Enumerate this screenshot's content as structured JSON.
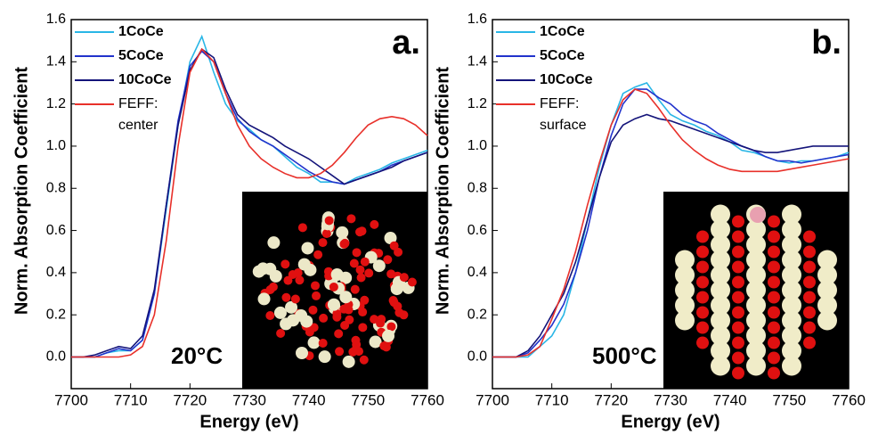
{
  "chart_data": [
    {
      "type": "line",
      "annotation": "a.",
      "inset_label": "20°C",
      "xlabel": "Energy (eV)",
      "ylabel": "Norm. Absorption Coefficient",
      "x": [
        7700,
        7702,
        7704,
        7706,
        7708,
        7710,
        7712,
        7714,
        7716,
        7718,
        7720,
        7722,
        7724,
        7726,
        7728,
        7730,
        7732,
        7734,
        7736,
        7738,
        7740,
        7742,
        7744,
        7746,
        7748,
        7750,
        7752,
        7754,
        7756,
        7758,
        7760
      ],
      "series": [
        {
          "name": "1CoCe",
          "color": "#29b6e6",
          "values": [
            0,
            0,
            0,
            0.02,
            0.03,
            0.03,
            0.08,
            0.3,
            0.7,
            1.1,
            1.4,
            1.52,
            1.35,
            1.2,
            1.12,
            1.08,
            1.03,
            1.0,
            0.95,
            0.9,
            0.87,
            0.83,
            0.83,
            0.82,
            0.85,
            0.87,
            0.89,
            0.92,
            0.94,
            0.96,
            0.98
          ]
        },
        {
          "name": "5CoCe",
          "color": "#2233cc",
          "values": [
            0,
            0,
            0,
            0.02,
            0.04,
            0.03,
            0.08,
            0.3,
            0.72,
            1.12,
            1.38,
            1.45,
            1.4,
            1.25,
            1.13,
            1.07,
            1.03,
            1.0,
            0.96,
            0.92,
            0.88,
            0.85,
            0.83,
            0.82,
            0.84,
            0.86,
            0.88,
            0.91,
            0.93,
            0.95,
            0.97
          ]
        },
        {
          "name": "10CoCe",
          "color": "#14147a",
          "values": [
            0,
            0,
            0.01,
            0.03,
            0.05,
            0.04,
            0.1,
            0.32,
            0.72,
            1.1,
            1.36,
            1.46,
            1.42,
            1.27,
            1.15,
            1.1,
            1.07,
            1.04,
            1.0,
            0.97,
            0.94,
            0.9,
            0.86,
            0.82,
            0.84,
            0.86,
            0.88,
            0.9,
            0.93,
            0.95,
            0.97
          ]
        },
        {
          "name": "FEFF: center",
          "color": "#e8302a",
          "values": [
            0,
            0,
            0,
            0,
            0,
            0.01,
            0.05,
            0.2,
            0.55,
            1.0,
            1.35,
            1.46,
            1.4,
            1.25,
            1.1,
            1.0,
            0.94,
            0.9,
            0.87,
            0.85,
            0.85,
            0.87,
            0.91,
            0.97,
            1.04,
            1.1,
            1.13,
            1.14,
            1.13,
            1.1,
            1.05
          ]
        }
      ],
      "xlim": [
        7700,
        7760
      ],
      "xticks": [
        7700,
        7710,
        7720,
        7730,
        7740,
        7750,
        7760
      ],
      "ylim": [
        -0.15,
        1.6
      ],
      "yticks": [
        {
          "value": 0,
          "label": "0.0"
        },
        0.2,
        0.4,
        0.6,
        0.8,
        {
          "value": 1,
          "label": "1.0"
        },
        1.2,
        1.4,
        1.6
      ]
    },
    {
      "type": "line",
      "annotation": "b.",
      "inset_label": "500°C",
      "xlabel": "Energy (eV)",
      "ylabel": "Norm. Absorption Coefficient",
      "x": [
        7700,
        7702,
        7704,
        7706,
        7708,
        7710,
        7712,
        7714,
        7716,
        7718,
        7720,
        7722,
        7724,
        7726,
        7728,
        7730,
        7732,
        7734,
        7736,
        7738,
        7740,
        7742,
        7744,
        7746,
        7748,
        7750,
        7752,
        7754,
        7756,
        7758,
        7760
      ],
      "series": [
        {
          "name": "1CoCe",
          "color": "#29b6e6",
          "values": [
            0,
            0,
            0,
            0,
            0.05,
            0.1,
            0.2,
            0.4,
            0.65,
            0.9,
            1.1,
            1.25,
            1.28,
            1.3,
            1.22,
            1.15,
            1.12,
            1.1,
            1.07,
            1.05,
            1.02,
            0.98,
            0.97,
            0.95,
            0.93,
            0.92,
            0.93,
            0.93,
            0.94,
            0.95,
            0.97
          ]
        },
        {
          "name": "5CoCe",
          "color": "#2233cc",
          "values": [
            0,
            0,
            0,
            0.02,
            0.08,
            0.15,
            0.25,
            0.4,
            0.6,
            0.85,
            1.05,
            1.2,
            1.27,
            1.27,
            1.23,
            1.2,
            1.15,
            1.12,
            1.1,
            1.06,
            1.03,
            1.0,
            0.98,
            0.95,
            0.93,
            0.93,
            0.92,
            0.93,
            0.94,
            0.95,
            0.96
          ]
        },
        {
          "name": "10CoCe",
          "color": "#14147a",
          "values": [
            0,
            0,
            0,
            0.03,
            0.1,
            0.2,
            0.3,
            0.45,
            0.65,
            0.85,
            1.02,
            1.1,
            1.13,
            1.15,
            1.13,
            1.12,
            1.1,
            1.08,
            1.06,
            1.04,
            1.02,
            1.0,
            0.98,
            0.97,
            0.97,
            0.98,
            0.99,
            1.0,
            1.0,
            1.0,
            1.0
          ]
        },
        {
          "name": "FEFF: surface",
          "color": "#e8302a",
          "values": [
            0,
            0,
            0,
            0.01,
            0.05,
            0.18,
            0.32,
            0.5,
            0.72,
            0.92,
            1.1,
            1.22,
            1.27,
            1.25,
            1.18,
            1.1,
            1.03,
            0.98,
            0.94,
            0.91,
            0.89,
            0.88,
            0.88,
            0.88,
            0.88,
            0.89,
            0.9,
            0.91,
            0.92,
            0.93,
            0.94
          ]
        }
      ],
      "xlim": [
        7700,
        7760
      ],
      "xticks": [
        7700,
        7710,
        7720,
        7730,
        7740,
        7750,
        7760
      ],
      "ylim": [
        -0.15,
        1.6
      ],
      "yticks": [
        {
          "value": 0,
          "label": "0.0"
        },
        0.2,
        0.4,
        0.6,
        0.8,
        {
          "value": 1,
          "label": "1.0"
        },
        1.2,
        1.4,
        1.6
      ]
    }
  ]
}
